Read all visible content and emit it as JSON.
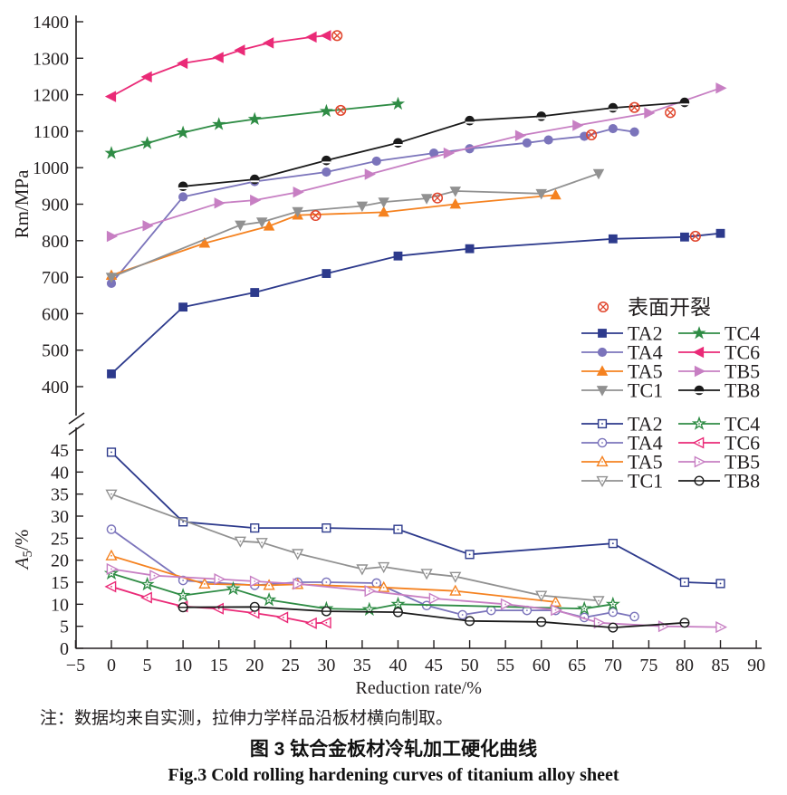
{
  "figure": {
    "note": "注：数据均来自实测，拉伸力学样品沿板材横向制取。",
    "caption_zh": "图 3  钛合金板材冷轧加工硬化曲线",
    "caption_en": "Fig.3  Cold rolling hardening curves of titanium alloy sheet"
  },
  "chart_data": {
    "type": "line",
    "xlabel": "Reduction rate/%",
    "x_range": {
      "min": -5,
      "max": 90,
      "tick_step": 5
    },
    "grid": false,
    "legend_position": "inside-right",
    "crack_legend": {
      "label": "表面开裂",
      "color": "#e0452c",
      "symbol": "circled-x"
    },
    "series_style": [
      {
        "id": "TA2",
        "label": "TA2",
        "color": "#2d3a8c",
        "marker": "square"
      },
      {
        "id": "TA4",
        "label": "TA4",
        "color": "#7b74bb",
        "marker": "circle"
      },
      {
        "id": "TA5",
        "label": "TA5",
        "color": "#f58220",
        "marker": "triangle-up"
      },
      {
        "id": "TC1",
        "label": "TC1",
        "color": "#919191",
        "marker": "triangle-down"
      },
      {
        "id": "TC4",
        "label": "TC4",
        "color": "#2f8c45",
        "marker": "star"
      },
      {
        "id": "TC6",
        "label": "TC6",
        "color": "#ea2a77",
        "marker": "triangle-left"
      },
      {
        "id": "TB5",
        "label": "TB5",
        "color": "#c77fc3",
        "marker": "triangle-right"
      },
      {
        "id": "TB8",
        "label": "TB8",
        "color": "#1a1a1a",
        "marker": "circle-notch"
      }
    ],
    "panels": [
      {
        "name": "strength",
        "ylabel": "Rm/MPa",
        "y_range": {
          "min": 400,
          "max": 1400,
          "tick_step": 100
        },
        "marker_fill": "filled",
        "series": [
          {
            "id": "TA2",
            "x": [
              0,
              10,
              20,
              30,
              40,
              50,
              70,
              80,
              85
            ],
            "y": [
              435,
              618,
              658,
              710,
              758,
              778,
              805,
              810,
              820
            ],
            "crack": [
              81.5,
              812
            ]
          },
          {
            "id": "TA4",
            "x": [
              0,
              10,
              20,
              30,
              37,
              45,
              50,
              58,
              61,
              66,
              70,
              73
            ],
            "y": [
              683,
              920,
              962,
              988,
              1018,
              1040,
              1052,
              1068,
              1076,
              1086,
              1107,
              1098
            ],
            "crack": [
              67,
              1090
            ]
          },
          {
            "id": "TA5",
            "x": [
              0,
              13,
              22,
              26,
              38,
              48,
              62
            ],
            "y": [
              705,
              793,
              840,
              870,
              878,
              900,
              925
            ],
            "crack": [
              28.5,
              869
            ]
          },
          {
            "id": "TC1",
            "x": [
              0,
              18,
              21,
              26,
              35,
              38,
              44,
              48,
              60,
              68
            ],
            "y": [
              700,
              843,
              851,
              880,
              895,
              906,
              916,
              936,
              929,
              984
            ],
            "crack": [
              45.5,
              917
            ]
          },
          {
            "id": "TC4",
            "x": [
              0,
              5,
              10,
              15,
              20,
              30,
              40
            ],
            "y": [
              1040,
              1067,
              1096,
              1119,
              1133,
              1155,
              1175
            ],
            "crack": [
              32,
              1157
            ]
          },
          {
            "id": "TC6",
            "x": [
              0,
              5,
              10,
              15,
              18,
              22,
              28,
              30
            ],
            "y": [
              1195,
              1249,
              1286,
              1302,
              1322,
              1342,
              1358,
              1362
            ],
            "crack": [
              31.5,
              1362
            ]
          },
          {
            "id": "TB5",
            "x": [
              0,
              5,
              15,
              20,
              26,
              36,
              47,
              57,
              65,
              75,
              85
            ],
            "y": [
              812,
              841,
              903,
              911,
              933,
              982,
              1040,
              1088,
              1116,
              1150,
              1218
            ],
            "crack": [
              78,
              1151
            ]
          },
          {
            "id": "TB8",
            "x": [
              10,
              20,
              30,
              40,
              50,
              60,
              70,
              80
            ],
            "y": [
              949,
              968,
              1020,
              1068,
              1129,
              1141,
              1164,
              1179
            ],
            "crack": [
              73,
              1165
            ]
          }
        ]
      },
      {
        "name": "elongation",
        "ylabel": "A5/%",
        "ylabel_parts": {
          "pre": "A",
          "sub": "5",
          "post": "/%"
        },
        "y_range": {
          "min": 0,
          "max": 45,
          "tick_step": 5
        },
        "marker_fill": "open",
        "series": [
          {
            "id": "TA2",
            "x": [
              0,
              10,
              20,
              30,
              40,
              50,
              70,
              80,
              85
            ],
            "y": [
              44.5,
              28.7,
              27.3,
              27.3,
              27,
              21.3,
              23.8,
              15,
              14.7
            ]
          },
          {
            "id": "TA4",
            "x": [
              0,
              10,
              20,
              26,
              30,
              37,
              44,
              49,
              53,
              58,
              62,
              66,
              70,
              73
            ],
            "y": [
              27,
              15.4,
              14.3,
              15,
              15,
              14.8,
              9.7,
              7.6,
              8.6,
              8.6,
              8.6,
              7,
              8.2,
              7.2
            ]
          },
          {
            "id": "TA5",
            "x": [
              0,
              13,
              22,
              26,
              38,
              48,
              62
            ],
            "y": [
              21,
              14.6,
              14.3,
              14.5,
              13.8,
              13,
              10.5
            ]
          },
          {
            "id": "TC1",
            "x": [
              0,
              18,
              21,
              26,
              35,
              38,
              44,
              48,
              60,
              68
            ],
            "y": [
              35,
              24.3,
              24,
              21.5,
              18,
              18.5,
              17,
              16.3,
              12,
              10.8
            ]
          },
          {
            "id": "TC4",
            "x": [
              0,
              5,
              10,
              17,
              22,
              30,
              36,
              40,
              66,
              70
            ],
            "y": [
              17,
              14.5,
              12,
              13.5,
              11,
              9,
              8.8,
              10,
              9,
              10
            ]
          },
          {
            "id": "TC6",
            "x": [
              0,
              5,
              10,
              15,
              20,
              24,
              28,
              30
            ],
            "y": [
              14,
              11.5,
              9.5,
              9,
              8,
              7,
              5.7,
              5.8
            ]
          },
          {
            "id": "TB5",
            "x": [
              0,
              6,
              15,
              20,
              26,
              36,
              45,
              55,
              62,
              68,
              77,
              85
            ],
            "y": [
              18,
              16.5,
              15.7,
              15.2,
              14.6,
              13,
              11.3,
              10,
              8.7,
              5.8,
              5,
              4.8
            ]
          },
          {
            "id": "TB8",
            "x": [
              10,
              20,
              30,
              40,
              50,
              60,
              70,
              80
            ],
            "y": [
              9.3,
              9.4,
              8.4,
              8.2,
              6.2,
              6,
              4.7,
              5.8
            ]
          }
        ]
      }
    ]
  }
}
